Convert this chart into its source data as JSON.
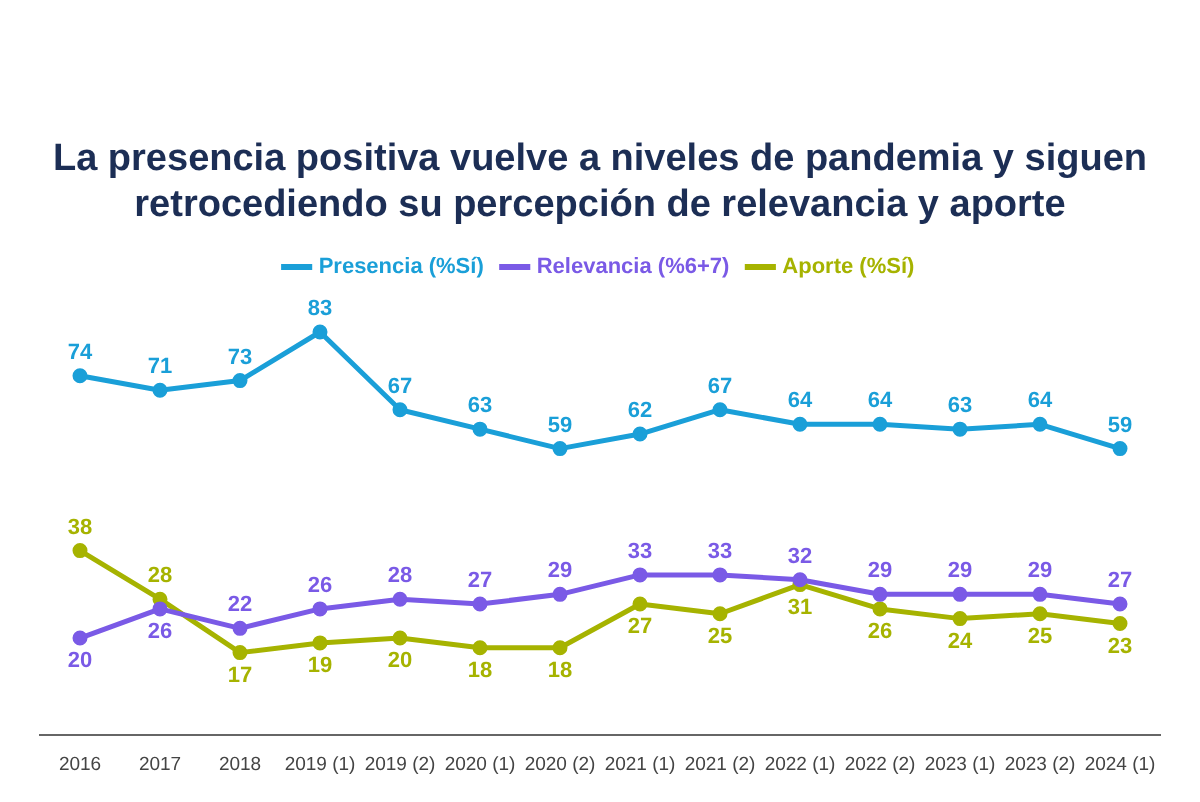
{
  "chart_data": {
    "type": "line",
    "title": "La presencia positiva vuelve a niveles de pandemia y siguen retrocediendo su percepción de relevancia y aporte",
    "categories": [
      "2016",
      "2017",
      "2018",
      "2019 (1)",
      "2019 (2)",
      "2020 (1)",
      "2020 (2)",
      "2021 (1)",
      "2021 (2)",
      "2022 (1)",
      "2022 (2)",
      "2023 (1)",
      "2023 (2)",
      "2024 (1)"
    ],
    "series": [
      {
        "name": "Presencia (%Sí)",
        "color": "#1a9fd8",
        "values": [
          74,
          71,
          73,
          83,
          67,
          63,
          59,
          62,
          67,
          64,
          64,
          63,
          64,
          59
        ]
      },
      {
        "name": "Relevancia (%6+7)",
        "color": "#7a5ae6",
        "values": [
          20,
          26,
          22,
          26,
          28,
          27,
          29,
          33,
          33,
          32,
          29,
          29,
          29,
          27
        ]
      },
      {
        "name": "Aporte (%Sí)",
        "color": "#a6b300",
        "values": [
          38,
          28,
          17,
          19,
          20,
          18,
          18,
          27,
          25,
          31,
          26,
          24,
          25,
          23
        ]
      }
    ],
    "data_labels": true,
    "legend": "top",
    "marker": "circle",
    "line_style": "solid",
    "grid": false,
    "tick_labels": "x"
  }
}
